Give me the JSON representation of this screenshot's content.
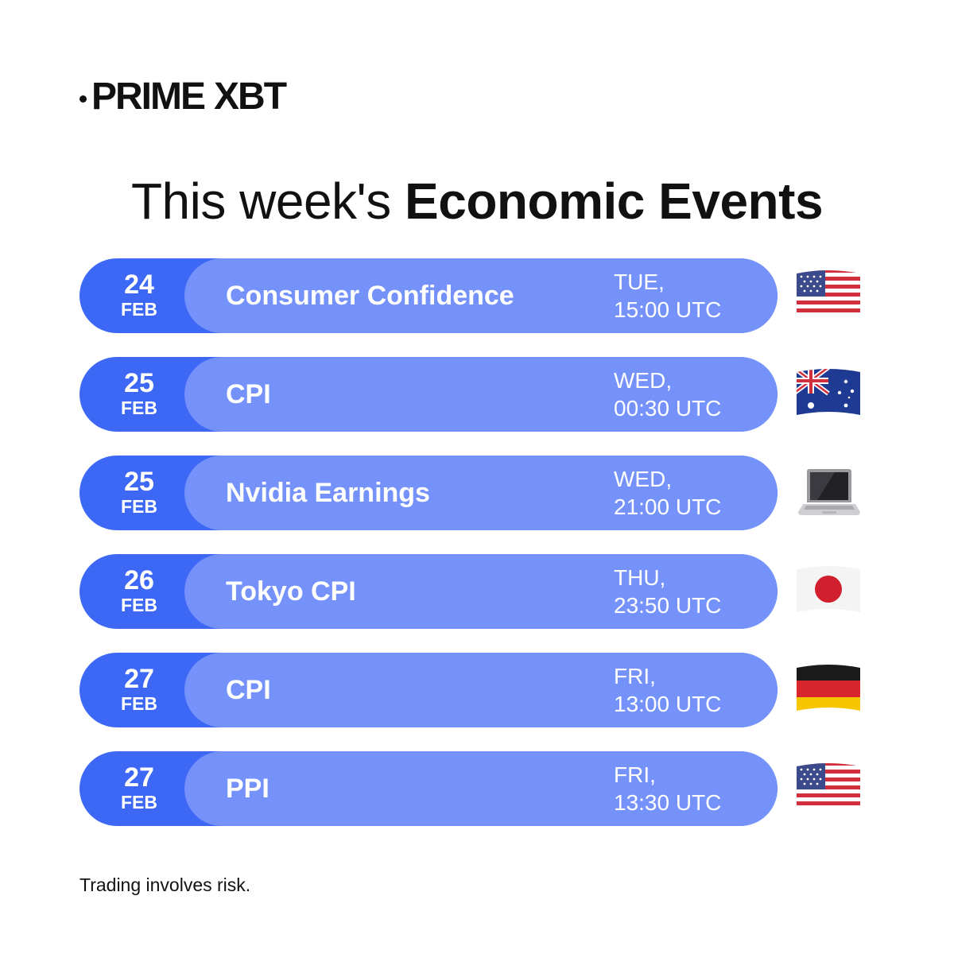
{
  "brand": {
    "bold": "PRIME",
    "light": "XBT"
  },
  "headline": {
    "light": "This week's",
    "bold": "Economic Events"
  },
  "events": [
    {
      "day": "24",
      "month": "FEB",
      "name": "Consumer Confidence",
      "weekday": "TUE,",
      "time": "15:00 UTC",
      "icon": "us-flag-icon"
    },
    {
      "day": "25",
      "month": "FEB",
      "name": "CPI",
      "weekday": "WED,",
      "time": "00:30 UTC",
      "icon": "australia-flag-icon"
    },
    {
      "day": "25",
      "month": "FEB",
      "name": "Nvidia Earnings",
      "weekday": "WED,",
      "time": "21:00 UTC",
      "icon": "laptop-icon"
    },
    {
      "day": "26",
      "month": "FEB",
      "name": "Tokyo CPI",
      "weekday": "THU,",
      "time": "23:50 UTC",
      "icon": "japan-flag-icon"
    },
    {
      "day": "27",
      "month": "FEB",
      "name": "CPI",
      "weekday": "FRI,",
      "time": "13:00 UTC",
      "icon": "germany-flag-icon"
    },
    {
      "day": "27",
      "month": "FEB",
      "name": "PPI",
      "weekday": "FRI,",
      "time": "13:30 UTC",
      "icon": "us-flag-icon"
    }
  ],
  "disclaimer": "Trading involves risk.",
  "colors": {
    "date_pill": "#3d68f6",
    "event_pill": "#7592fb",
    "text_on_pill": "#ffffff"
  }
}
